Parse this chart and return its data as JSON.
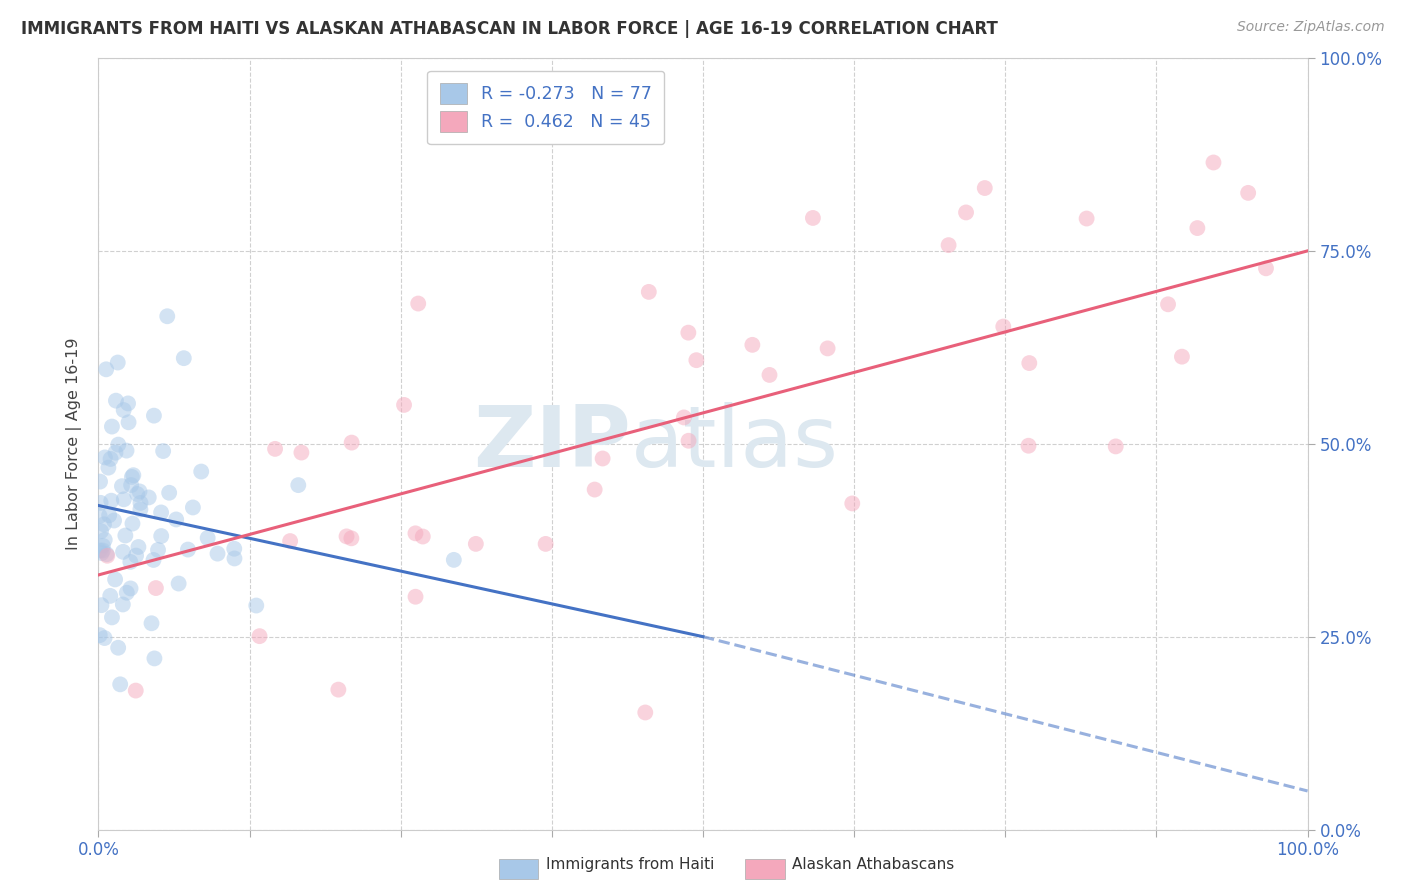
{
  "title": "IMMIGRANTS FROM HAITI VS ALASKAN ATHABASCAN IN LABOR FORCE | AGE 16-19 CORRELATION CHART",
  "source": "Source: ZipAtlas.com",
  "ylabel": "In Labor Force | Age 16-19",
  "xlim": [
    0.0,
    1.0
  ],
  "ylim": [
    0.0,
    1.0
  ],
  "xticks": [
    0.0,
    0.125,
    0.25,
    0.375,
    0.5,
    0.625,
    0.75,
    0.875,
    1.0
  ],
  "xtick_labels_shown": {
    "0.0": "0.0%",
    "1.0": "100.0%"
  },
  "yticks": [
    0.0,
    0.25,
    0.5,
    0.75,
    1.0
  ],
  "ytick_labels": [
    "0.0%",
    "25.0%",
    "50.0%",
    "75.0%",
    "100.0%"
  ],
  "haiti_color": "#a8c8e8",
  "athabascan_color": "#f4a8bc",
  "haiti_line_color": "#4472c4",
  "athabascan_line_color": "#e8607a",
  "haiti_R": -0.273,
  "haiti_N": 77,
  "athabascan_R": 0.462,
  "athabascan_N": 45,
  "watermark_zip": "ZIP",
  "watermark_atlas": "atlas",
  "legend_labels": [
    "Immigrants from Haiti",
    "Alaskan Athabascans"
  ],
  "background_color": "#ffffff",
  "grid_color": "#d0d0d0",
  "dot_size": 130,
  "dot_alpha": 0.5,
  "line_width": 2.2,
  "haiti_line_x0": 0.0,
  "haiti_line_x_solid_end": 0.5,
  "haiti_line_x_dashed_end": 1.0,
  "haiti_line_y0": 0.42,
  "haiti_line_y_at_solid_end": 0.25,
  "haiti_line_y_dashed_end": 0.05,
  "ath_line_x0": 0.0,
  "ath_line_x1": 1.0,
  "ath_line_y0": 0.33,
  "ath_line_y1": 0.75
}
